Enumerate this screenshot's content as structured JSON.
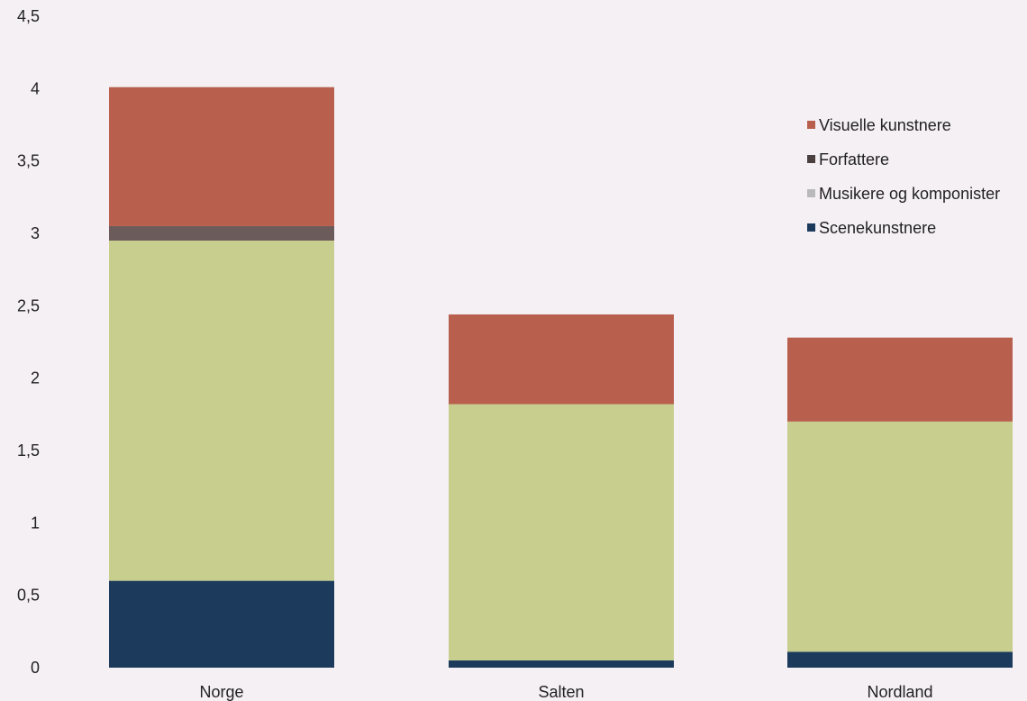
{
  "chart_data": {
    "type": "bar",
    "stacked": true,
    "categories": [
      "Norge",
      "Salten",
      "Nordland"
    ],
    "series": [
      {
        "name": "Scenekunstnere",
        "values": [
          0.6,
          0.05,
          0.11
        ],
        "color": "#1b3a5c"
      },
      {
        "name": "Musikere og komponister",
        "values": [
          2.35,
          1.77,
          1.59
        ],
        "color": "#c8cf8e"
      },
      {
        "name": "Forfattere",
        "values": [
          0.1,
          0.0,
          0.0
        ],
        "color": "#6b5b5b"
      },
      {
        "name": "Visuelle kunstnere",
        "values": [
          0.96,
          0.62,
          0.58
        ],
        "color": "#b8604d"
      }
    ],
    "legend_order": [
      "Visuelle kunstnere",
      "Forfattere",
      "Musikere og komponister",
      "Scenekunstnere"
    ],
    "legend_marker_colors": {
      "Visuelle kunstnere": "#b8604d",
      "Forfattere": "#4a4040",
      "Musikere og komponister": "#b9b9b9",
      "Scenekunstnere": "#1b3a5c"
    },
    "ylim": [
      0,
      4.5
    ],
    "yticks": [
      "0",
      "0,5",
      "1",
      "1,5",
      "2",
      "2,5",
      "3",
      "3,5",
      "4",
      "4,5"
    ],
    "ytick_values": [
      0,
      0.5,
      1,
      1.5,
      2,
      2.5,
      3,
      3.5,
      4,
      4.5
    ],
    "grid": false,
    "legend_position": "right"
  }
}
